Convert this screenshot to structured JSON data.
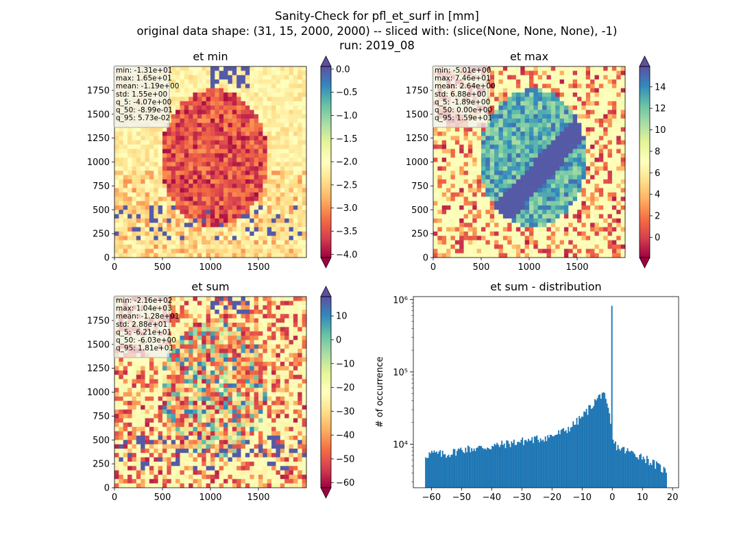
{
  "figure": {
    "title_lines": [
      "Sanity-Check for pfl_et_surf in [mm]",
      "original data shape: (31, 15, 2000, 2000) -- sliced with: (slice(None, None, None), -1)",
      "run: 2019_08"
    ]
  },
  "chart_data": [
    {
      "type": "heatmap",
      "title": "et min",
      "xlim": [
        0,
        2000
      ],
      "ylim": [
        0,
        2000
      ],
      "xticks": [
        0,
        500,
        1000,
        1500
      ],
      "yticks": [
        0,
        250,
        500,
        750,
        1000,
        1250,
        1500,
        1750
      ],
      "stats": [
        "min: -1.31e+01",
        "max: 1.65e+01",
        "mean: -1.19e+00",
        "std: 1.55e+00",
        "q_5: -4.07e+00",
        "q_50: -8.99e-01",
        "q_95: 5.73e-02"
      ],
      "colorbar": {
        "colormap": "Spectral",
        "vmin": -4.07,
        "vmax": 0.0573,
        "extend": "both",
        "ticks": [
          0.0,
          -0.5,
          -1.0,
          -1.5,
          -2.0,
          -2.5,
          -3.0,
          -3.5,
          -4.0
        ],
        "tick_labels": [
          "0.0",
          "−0.5",
          "−1.0",
          "−1.5",
          "−2.0",
          "−2.5",
          "−3.0",
          "−3.5",
          "−4.0"
        ]
      }
    },
    {
      "type": "heatmap",
      "title": "et max",
      "xlim": [
        0,
        2000
      ],
      "ylim": [
        0,
        2000
      ],
      "xticks": [
        0,
        500,
        1000,
        1500
      ],
      "yticks": [
        0,
        250,
        500,
        750,
        1000,
        1250,
        1500,
        1750
      ],
      "stats": [
        "min: -5.01e+00",
        "max: 7.46e+01",
        "mean: 2.64e+00",
        "std: 6.88e+00",
        "q_5: -1.89e+00",
        "q_50: 0.00e+00",
        "q_95: 1.59e+01"
      ],
      "colorbar": {
        "colormap": "Spectral",
        "vmin": -1.89,
        "vmax": 15.9,
        "extend": "both",
        "ticks": [
          14,
          12,
          10,
          8,
          6,
          4,
          2,
          0
        ],
        "tick_labels": [
          "14",
          "12",
          "10",
          "8",
          "6",
          "4",
          "2",
          "0"
        ]
      }
    },
    {
      "type": "heatmap",
      "title": "et sum",
      "xlim": [
        0,
        2000
      ],
      "ylim": [
        0,
        2000
      ],
      "xticks": [
        0,
        500,
        1000,
        1500
      ],
      "yticks": [
        0,
        250,
        500,
        750,
        1000,
        1250,
        1500,
        1750
      ],
      "stats": [
        "min: -2.16e+02",
        "max: 1.04e+03",
        "mean: -1.28e+01",
        "std: 2.88e+01",
        "q_5: -6.21e+01",
        "q_50: -6.03e+00",
        "q_95: 1.81e+01"
      ],
      "colorbar": {
        "colormap": "Spectral",
        "vmin": -62.1,
        "vmax": 18.1,
        "extend": "both",
        "ticks": [
          10,
          0,
          -10,
          -20,
          -30,
          -40,
          -50,
          -60
        ],
        "tick_labels": [
          "10",
          "0",
          "−10",
          "−20",
          "−30",
          "−40",
          "−50",
          "−60"
        ]
      }
    },
    {
      "type": "bar",
      "title": "et sum - distribution",
      "ylabel": "# of occurrence",
      "yscale": "log",
      "xlim": [
        -66,
        22
      ],
      "ylim": [
        2500,
        1100000
      ],
      "xticks": [
        -60,
        -50,
        -40,
        -30,
        -20,
        -10,
        0,
        10,
        20
      ],
      "xtick_labels": [
        "−60",
        "−50",
        "−40",
        "−30",
        "−20",
        "−10",
        "0",
        "10",
        "20"
      ],
      "yticks": [
        10000,
        100000,
        1000000
      ],
      "ytick_labels": [
        "10⁴",
        "10⁵",
        "10⁶"
      ],
      "color": "#1f77b4",
      "bins": {
        "start": -62.1,
        "end": 18.1,
        "count": 200
      },
      "anchors": [
        [
          -62,
          7000
        ],
        [
          -60,
          7500
        ],
        [
          -55,
          7200
        ],
        [
          -50,
          8500
        ],
        [
          -45,
          8800
        ],
        [
          -40,
          9300
        ],
        [
          -35,
          10200
        ],
        [
          -30,
          11000
        ],
        [
          -25,
          11800
        ],
        [
          -20,
          13000
        ],
        [
          -17,
          14500
        ],
        [
          -15,
          16000
        ],
        [
          -12,
          20000
        ],
        [
          -10,
          24000
        ],
        [
          -8,
          30000
        ],
        [
          -6,
          38000
        ],
        [
          -4,
          47000
        ],
        [
          -3,
          55000
        ],
        [
          -2,
          35000
        ],
        [
          -1,
          26000
        ],
        [
          0,
          11000
        ],
        [
          2,
          9000
        ],
        [
          5,
          8000
        ],
        [
          10,
          6800
        ],
        [
          15,
          5000
        ],
        [
          18,
          4200
        ]
      ],
      "spike": {
        "x": -0.1,
        "value": 820000
      }
    }
  ]
}
